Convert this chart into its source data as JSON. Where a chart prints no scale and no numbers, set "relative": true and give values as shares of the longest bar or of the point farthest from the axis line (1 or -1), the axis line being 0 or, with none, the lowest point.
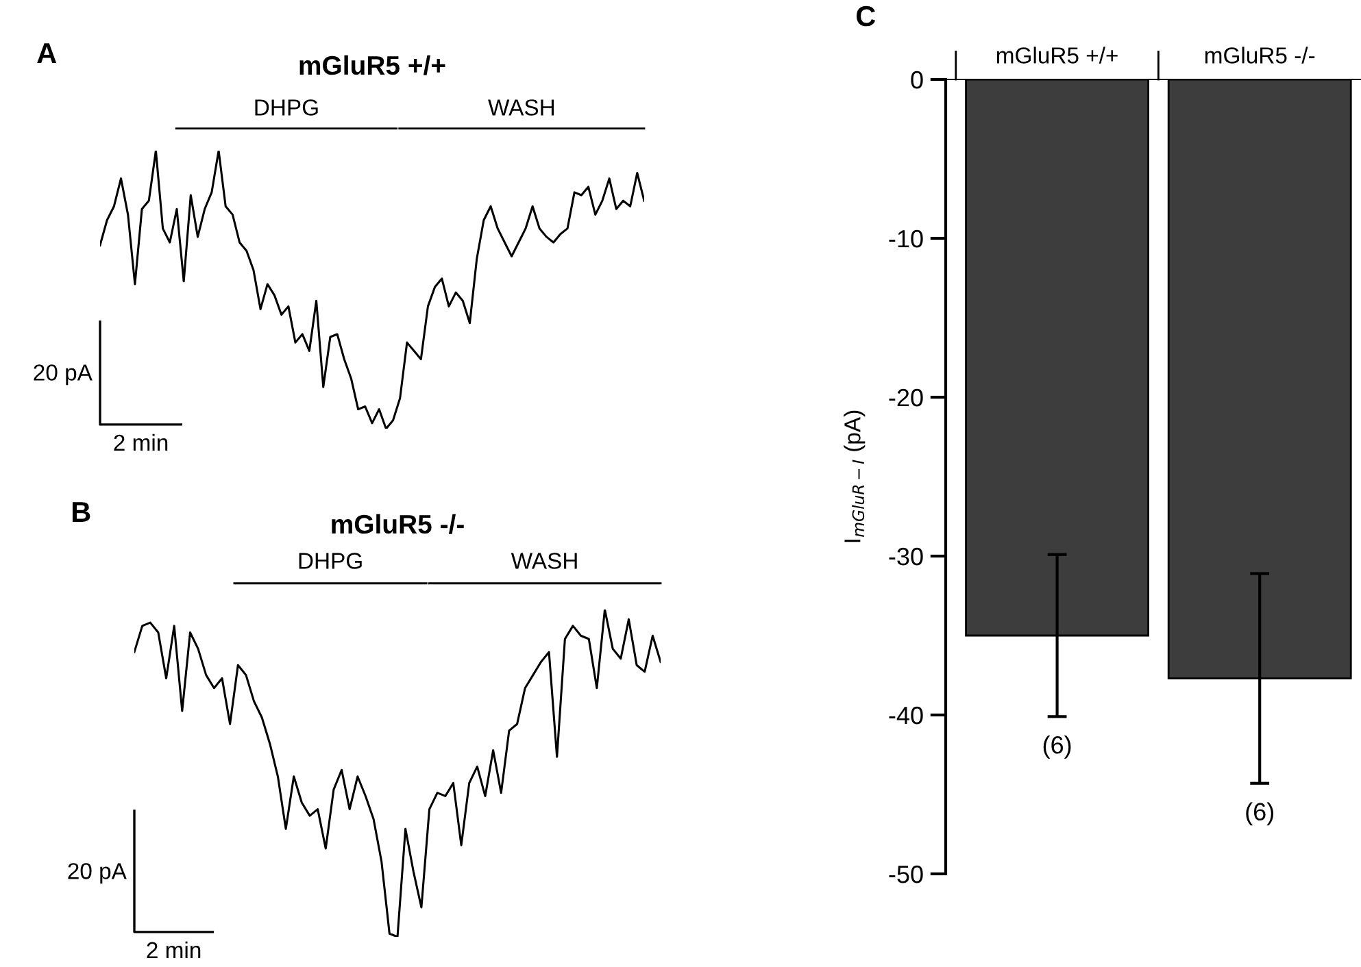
{
  "chart_data": [
    {
      "type": "line",
      "title": "mGluR5 +/+",
      "relative": true,
      "tick_labels": false,
      "annotations": [
        "A",
        "20 pA",
        "2 min",
        "DHPG",
        "WASH"
      ],
      "categories": [
        null,
        null,
        null,
        null,
        null,
        null,
        null,
        null,
        null,
        null,
        null,
        null,
        null,
        null,
        null,
        null,
        null,
        null,
        null,
        null,
        null,
        null,
        null,
        null,
        null,
        null,
        null,
        null,
        null,
        null,
        null,
        null,
        null,
        null,
        null,
        null,
        null,
        null,
        null,
        null,
        null,
        null,
        null,
        null,
        null,
        null,
        null,
        null,
        null,
        null,
        null,
        null,
        null,
        null,
        null,
        null,
        null,
        null,
        null,
        null,
        null,
        null,
        null,
        null,
        null,
        null,
        null,
        null,
        null,
        null,
        null,
        null,
        null,
        null,
        null,
        null,
        null,
        null,
        null
      ],
      "series": [
        {
          "color": "#000000",
          "values": [
            0.66,
            0.75,
            0.8,
            0.9,
            0.77,
            0.52,
            0.79,
            0.82,
            1.0,
            0.72,
            0.67,
            0.79,
            0.53,
            0.84,
            0.69,
            0.79,
            0.85,
            1.0,
            0.8,
            0.77,
            0.67,
            0.64,
            0.57,
            0.43,
            0.52,
            0.48,
            0.41,
            0.44,
            0.31,
            0.34,
            0.28,
            0.46,
            0.15,
            0.33,
            0.34,
            0.25,
            0.18,
            0.07,
            0.08,
            0.02,
            0.07,
            0,
            0.03,
            0.11,
            0.31,
            0.28,
            0.25,
            0.44,
            0.51,
            0.54,
            0.44,
            0.49,
            0.46,
            0.38,
            0.61,
            0.75,
            0.8,
            0.72,
            0.67,
            0.62,
            0.67,
            0.72,
            0.8,
            0.72,
            0.69,
            0.67,
            0.7,
            0.72,
            0.85,
            0.84,
            0.87,
            0.77,
            0.82,
            0.9,
            0.79,
            0.82,
            0.8,
            0.92,
            0.82
          ]
        }
      ]
    },
    {
      "type": "line",
      "title": "mGluR5 -/-",
      "relative": true,
      "tick_labels": false,
      "annotations": [
        "B",
        "20 pA",
        "2 min",
        "DHPG",
        "WASH"
      ],
      "categories": [
        null,
        null,
        null,
        null,
        null,
        null,
        null,
        null,
        null,
        null,
        null,
        null,
        null,
        null,
        null,
        null,
        null,
        null,
        null,
        null,
        null,
        null,
        null,
        null,
        null,
        null,
        null,
        null,
        null,
        null,
        null,
        null,
        null,
        null,
        null,
        null,
        null,
        null,
        null,
        null,
        null,
        null,
        null,
        null,
        null,
        null,
        null,
        null,
        null,
        null,
        null,
        null,
        null,
        null,
        null,
        null,
        null,
        null,
        null,
        null,
        null,
        null,
        null,
        null,
        null,
        null,
        null
      ],
      "series": [
        {
          "color": "#000000",
          "values": [
            0.87,
            0.95,
            0.96,
            0.93,
            0.79,
            0.95,
            0.69,
            0.93,
            0.88,
            0.8,
            0.76,
            0.79,
            0.65,
            0.83,
            0.8,
            0.72,
            0.67,
            0.59,
            0.49,
            0.33,
            0.49,
            0.41,
            0.37,
            0.39,
            0.27,
            0.45,
            0.51,
            0.39,
            0.49,
            0.43,
            0.36,
            0.23,
            0.01,
            0,
            0.33,
            0.2,
            0.09,
            0.39,
            0.44,
            0.43,
            0.47,
            0.28,
            0.47,
            0.52,
            0.43,
            0.57,
            0.44,
            0.63,
            0.65,
            0.76,
            0.8,
            0.84,
            0.87,
            0.55,
            0.91,
            0.95,
            0.92,
            0.91,
            0.76,
            1.0,
            0.88,
            0.85,
            0.97,
            0.83,
            0.81,
            0.92,
            0.84
          ]
        }
      ]
    },
    {
      "type": "bar",
      "ylabel": "I$_{mGluR−I}$ (pA)",
      "categories": [
        "mGluR5 +/+",
        "mGluR5 -/-"
      ],
      "values": [
        -35.0,
        -37.7
      ],
      "errors": [
        5.1,
        6.6
      ],
      "colors": [
        "#3d3d3d",
        "#3d3d3d"
      ],
      "ylim": [
        -50,
        0
      ],
      "yticks": [
        -50,
        -40,
        -30,
        -20,
        -10,
        0
      ],
      "annotations": [
        "C",
        "(6)",
        "(6)"
      ]
    }
  ]
}
